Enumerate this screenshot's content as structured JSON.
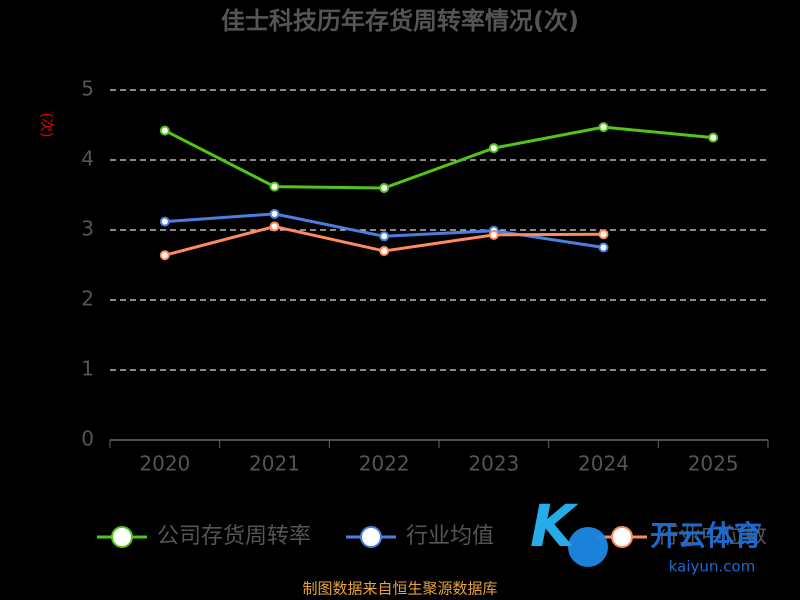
{
  "chart_data": {
    "type": "line",
    "title": "佳士科技历年存货周转率情况(次)",
    "y_label": "(次)",
    "categories": [
      "2020",
      "2021",
      "2022",
      "2023",
      "2024",
      "2025"
    ],
    "series": [
      {
        "name": "公司存货周转率",
        "color": "#52c41a",
        "values": [
          4.42,
          3.62,
          3.6,
          4.17,
          4.47,
          4.32
        ]
      },
      {
        "name": "行业均值",
        "color": "#4a7fe0",
        "values": [
          3.12,
          3.23,
          2.91,
          2.99,
          2.75,
          null
        ]
      },
      {
        "name": "行业中位数",
        "color": "#ff8a5c",
        "values": [
          2.64,
          3.05,
          2.7,
          2.93,
          2.94,
          null
        ]
      }
    ],
    "ylim": [
      0,
      5
    ],
    "yticks": [
      0,
      1,
      2,
      3,
      4,
      5
    ],
    "grid": true,
    "legend": "bottom",
    "source": "制图数据来自恒生聚源数据库",
    "watermark": [
      "开云体育",
      "kaiyun.com"
    ]
  }
}
